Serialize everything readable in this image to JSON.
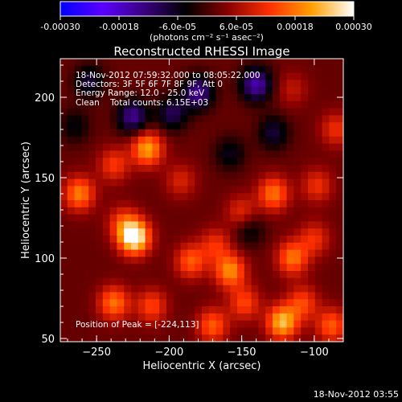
{
  "colorbar": {
    "ticks": [
      "-0.00030",
      "-0.00018",
      "-6.0e-05",
      "6.0e-05",
      "0.00018",
      "0.00030"
    ],
    "tick_values": [
      -0.0003,
      -0.00018,
      -6e-05,
      6e-05,
      0.00018,
      0.0003
    ],
    "range": [
      -0.0003,
      0.0003
    ],
    "units": "(photons cm⁻² s⁻¹ asec⁻²)",
    "colormap": [
      "#0000ff",
      "#5a00ff",
      "#3a0080",
      "#000000",
      "#8a0000",
      "#ff3000",
      "#ffa000",
      "#ffffff"
    ]
  },
  "chart_data": {
    "type": "heatmap",
    "title": "Reconstructed RHESSI Image",
    "xlabel": "Heliocentric X (arcsec)",
    "ylabel": "Heliocentric Y (arcsec)",
    "xlim": [
      -275,
      -80
    ],
    "ylim": [
      48,
      224
    ],
    "x_ticks": [
      -250,
      -200,
      -150,
      -100
    ],
    "x_tick_labels": [
      "−250",
      "−200",
      "−150",
      "−100"
    ],
    "y_ticks": [
      50,
      100,
      150,
      200
    ],
    "y_tick_labels": [
      "50",
      "100",
      "150",
      "200"
    ],
    "annotations": [
      "18-Nov-2012 07:59:32.000 to 08:05:22.000",
      "Detectors: 3F 5F 6F 7F 8F 9F, Att 0",
      "Energy Range: 12.0 - 25.0 keV",
      "Clean    Total counts: 6.15E+03"
    ],
    "peak_label": "Position of Peak = [-224,113]",
    "peak": [
      -224,
      113
    ],
    "sources": [
      {
        "x": -224,
        "y": 113,
        "amp": 0.0003
      },
      {
        "x": -232,
        "y": 122,
        "amp": 0.0001
      },
      {
        "x": -262,
        "y": 140,
        "amp": 0.00017
      },
      {
        "x": -215,
        "y": 168,
        "amp": 0.0002
      },
      {
        "x": -238,
        "y": 158,
        "amp": 0.00011
      },
      {
        "x": -192,
        "y": 148,
        "amp": 8e-05
      },
      {
        "x": -185,
        "y": 98,
        "amp": 0.00014
      },
      {
        "x": -158,
        "y": 92,
        "amp": 0.00018
      },
      {
        "x": -148,
        "y": 72,
        "amp": 0.00012
      },
      {
        "x": -238,
        "y": 72,
        "amp": 0.00016
      },
      {
        "x": -212,
        "y": 70,
        "amp": 0.00012
      },
      {
        "x": -170,
        "y": 58,
        "amp": 0.00014
      },
      {
        "x": -122,
        "y": 60,
        "amp": 0.00022
      },
      {
        "x": -108,
        "y": 72,
        "amp": 0.00012
      },
      {
        "x": -88,
        "y": 58,
        "amp": 0.00014
      },
      {
        "x": -115,
        "y": 100,
        "amp": 0.00016
      },
      {
        "x": -100,
        "y": 112,
        "amp": 0.0001
      },
      {
        "x": -128,
        "y": 140,
        "amp": 0.00016
      },
      {
        "x": -150,
        "y": 128,
        "amp": 0.0001
      },
      {
        "x": -98,
        "y": 145,
        "amp": 0.0001
      },
      {
        "x": -85,
        "y": 180,
        "amp": 0.0001
      },
      {
        "x": -115,
        "y": 205,
        "amp": 6e-05
      },
      {
        "x": -168,
        "y": 108,
        "amp": 0.0001
      },
      {
        "x": -180,
        "y": 203,
        "amp": -0.00016
      },
      {
        "x": -140,
        "y": 208,
        "amp": -0.00018
      },
      {
        "x": -225,
        "y": 188,
        "amp": -0.00016
      },
      {
        "x": -198,
        "y": 190,
        "amp": -0.00012
      },
      {
        "x": -255,
        "y": 210,
        "amp": -0.0001
      },
      {
        "x": -128,
        "y": 178,
        "amp": -0.0001
      },
      {
        "x": -145,
        "y": 118,
        "amp": -8e-05
      },
      {
        "x": -158,
        "y": 165,
        "amp": -8e-05
      },
      {
        "x": -265,
        "y": 182,
        "amp": -7e-05
      }
    ]
  },
  "footer": {
    "date": "18-Nov-2012 03:55"
  }
}
